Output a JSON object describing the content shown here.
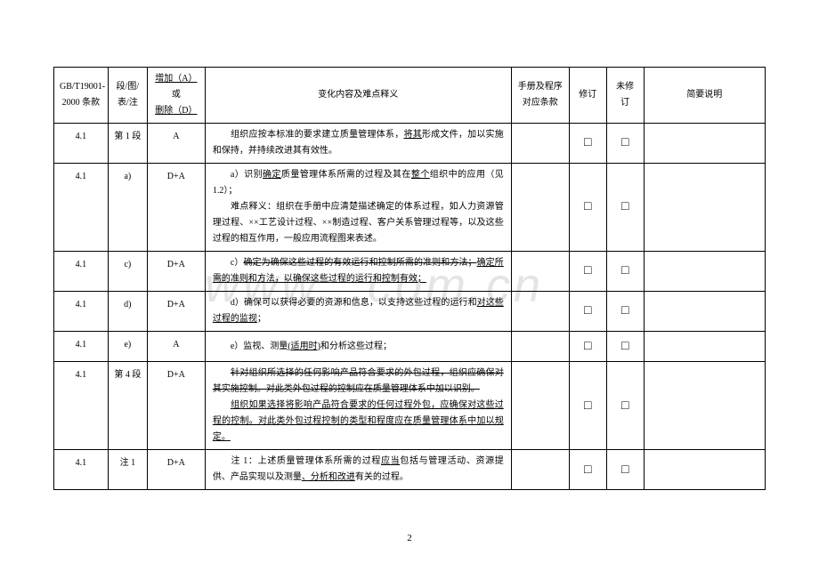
{
  "watermark": "www.   .com.cn",
  "pageNumber": "2",
  "headers": {
    "h1": "GB/T19001-2000 条款",
    "h2": "段/图/表/注",
    "h3": "增加（A）或删除（D）",
    "h3_line1": "增加（A）",
    "h3_line2": "或",
    "h3_line3": "删除（D）",
    "h4": "变化内容及难点释义",
    "h5": "手册及程序对应条款",
    "h6": "修订",
    "h7": "未修订",
    "h8": "简要说明"
  },
  "rows": [
    {
      "clause": "4.1",
      "seg": "第 1 段",
      "op": "A",
      "content_html": "<span class='indent'></span>组织应按本标准的要求建立质量管理体系，<span class='ul'>将其</span>形成文件，加以实施和保持，并持续改进其有效性。"
    },
    {
      "clause": "4.1",
      "seg": "a)",
      "op": "D+A",
      "content_html": "<span class='indent'></span>a）识别<span class='ul'>确定</span>质量管理体系所需的过程及其在<span class='ul'>整个</span>组织中的应用（见 1.2）；<br><span class='indent'></span>难点释义：组织在手册中应清楚描述确定的体系过程，如人力资源管理过程、××工艺设计过程、××制造过程、客户关系管理过程等，以及这些过程的相互作用，一般应用流程图来表述。"
    },
    {
      "clause": "4.1",
      "seg": "c)",
      "op": "D+A",
      "content_html": "<span class='indent'></span>c）<span class='strike'>确定为确保这些过程的有效运行和控制所需的准则和方法；</span><span class='ul'>确定所需的准则和方法，以确保这些过程的运行和控制有效；</span>"
    },
    {
      "clause": "4.1",
      "seg": "d)",
      "op": "D+A",
      "content_html": "<span class='indent'></span>d）确保可以获得必要的资源和信息，以支持这些过程的运行和<span class='ul'>对这些过程的监视</span>；"
    },
    {
      "clause": "4.1",
      "seg": "e)",
      "op": "A",
      "content_html": "<span class='indent'></span>e）监视、测量<span class='ul'>(适用时)</span>和分析这些过程；"
    },
    {
      "clause": "4.1",
      "seg": "第 4 段",
      "op": "D+A",
      "content_html": "<span class='indent'></span><span class='strike'>针对组织所选择的任何影响产品符合要求的外包过程，组织应确保对其实施控制。对此类外包过程的控制应在质量管理体系中加以识别。</span><br><span class='indent'></span><span class='ul'>组织如果选择将影响产品符合要求的任何过程外包，应确保对这些过程的控制。对此类外包过程控制的类型和程度应在质量管理体系中加以规定。</span>"
    },
    {
      "clause": "4.1",
      "seg": "注 1",
      "op": "D+A",
      "content_html": "<span class='indent'></span>注 1：上述质量管理体系所需的过程<span class='ul'>应当</span>包括与管理活动、资源提供、产品实现以及测量<span class='ul'>、分析和改进</span>有关的过程。"
    }
  ],
  "checkboxChar": "□"
}
